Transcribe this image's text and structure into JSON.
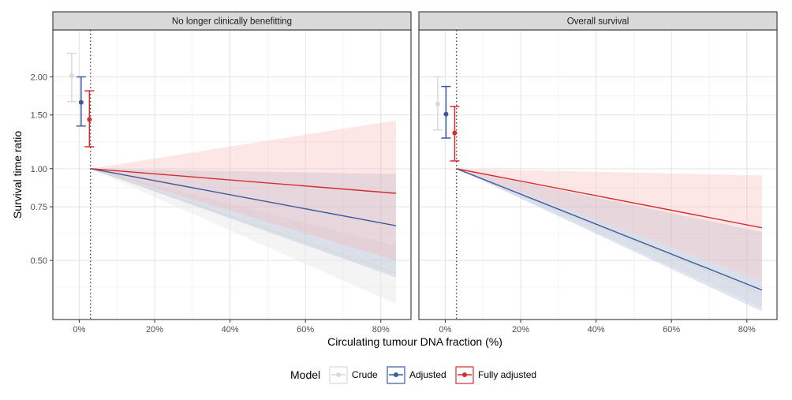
{
  "chart_data": {
    "type": "line",
    "ylabel": "Survival time ratio",
    "xlabel": "Circulating tumour DNA fraction (%)",
    "y_scale": "log",
    "ylim": [
      0.32,
      2.85
    ],
    "xlim": [
      -7,
      88
    ],
    "y_ticks": [
      0.5,
      0.75,
      1.0,
      1.5,
      2.0
    ],
    "y_tick_labels": [
      "0.50",
      "0.75",
      "1.00",
      "1.50",
      "2.00"
    ],
    "x_ticks": [
      0,
      20,
      40,
      60,
      80
    ],
    "x_tick_labels": [
      "0%",
      "20%",
      "40%",
      "60%",
      "80%"
    ],
    "reference_x": 3,
    "grid": true,
    "legend": {
      "title": "Model",
      "position": "bottom",
      "items": [
        {
          "label": "Crude",
          "color": "#d9d9d9"
        },
        {
          "label": "Adjusted",
          "color": "#3a5a9e"
        },
        {
          "label": "Fully adjusted",
          "color": "#d42d2d"
        }
      ]
    },
    "panels": [
      {
        "title": "No longer clinically benefitting",
        "point_estimates": [
          {
            "series": "Crude",
            "x": -2,
            "y": 2.02,
            "low": 1.66,
            "high": 2.39
          },
          {
            "series": "Adjusted",
            "x": 0.5,
            "y": 1.65,
            "low": 1.38,
            "high": 2.0
          },
          {
            "series": "Fully adjusted",
            "x": 2.7,
            "y": 1.45,
            "low": 1.18,
            "high": 1.8
          }
        ],
        "series": [
          {
            "name": "Crude",
            "x": [
              3,
              84
            ],
            "y": [
              1.0,
              0.455
            ],
            "low": [
              1.0,
              0.36
            ],
            "high": [
              1.0,
              0.56
            ]
          },
          {
            "name": "Adjusted",
            "x": [
              3,
              84
            ],
            "y": [
              1.0,
              0.65
            ],
            "low": [
              1.0,
              0.44
            ],
            "high": [
              1.0,
              0.96
            ]
          },
          {
            "name": "Fully adjusted",
            "x": [
              3,
              84
            ],
            "y": [
              1.0,
              0.83
            ],
            "low": [
              1.0,
              0.5
            ],
            "high": [
              1.0,
              1.44
            ]
          }
        ]
      },
      {
        "title": "Overall survival",
        "point_estimates": [
          {
            "series": "Crude",
            "x": -2,
            "y": 1.63,
            "low": 1.34,
            "high": 2.0
          },
          {
            "series": "Adjusted",
            "x": 0.2,
            "y": 1.51,
            "low": 1.26,
            "high": 1.86
          },
          {
            "series": "Fully adjusted",
            "x": 2.5,
            "y": 1.31,
            "low": 1.06,
            "high": 1.6
          }
        ],
        "series": [
          {
            "name": "Crude",
            "x": [
              3,
              84
            ],
            "y": [
              1.0,
              0.39
            ],
            "low": [
              1.0,
              0.35
            ],
            "high": [
              1.0,
              0.43
            ]
          },
          {
            "name": "Adjusted",
            "x": [
              3,
              84
            ],
            "y": [
              1.0,
              0.4
            ],
            "low": [
              1.0,
              0.34
            ],
            "high": [
              1.0,
              0.62
            ]
          },
          {
            "name": "Fully adjusted",
            "x": [
              3,
              84
            ],
            "y": [
              1.0,
              0.64
            ],
            "low": [
              1.0,
              0.43
            ],
            "high": [
              1.0,
              0.95
            ]
          }
        ]
      }
    ]
  }
}
